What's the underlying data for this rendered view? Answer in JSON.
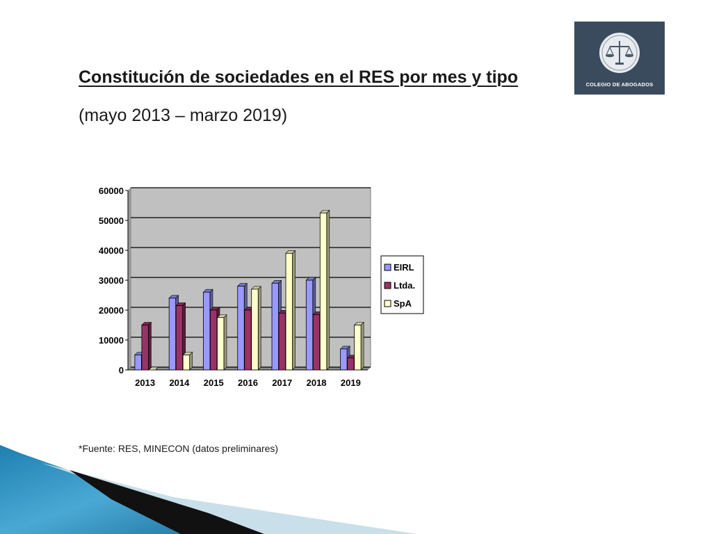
{
  "header": {
    "title": "Constitución de sociedades en el RES por mes y tipo",
    "subtitle": "(mayo 2013 – marzo 2019)"
  },
  "logo": {
    "text": "COLEGIO DE ABOGADOS",
    "icon": "scales-of-justice-icon",
    "background": "#3b4b5e"
  },
  "footer": {
    "source": "*Fuente: RES, MINECON (datos preliminares)"
  },
  "chart_data": {
    "type": "bar",
    "title": "",
    "xlabel": "",
    "ylabel": "",
    "categories": [
      "2013",
      "2014",
      "2015",
      "2016",
      "2017",
      "2018",
      "2019"
    ],
    "series": [
      {
        "name": "EIRL",
        "color": "#9999ff",
        "values": [
          5000,
          24000,
          26000,
          28000,
          29000,
          30000,
          7000
        ]
      },
      {
        "name": "Ltda.",
        "color": "#993366",
        "values": [
          15000,
          21500,
          20000,
          20000,
          19000,
          18500,
          4000
        ]
      },
      {
        "name": "SpA",
        "color": "#ffffcc",
        "values": [
          0,
          5000,
          17500,
          27000,
          39000,
          52500,
          15000
        ]
      }
    ],
    "ylim": [
      0,
      60000
    ],
    "yticks": [
      0,
      10000,
      20000,
      30000,
      40000,
      50000,
      60000
    ],
    "grid": true,
    "legend": "right",
    "plot_background": "#c0c0c0"
  }
}
